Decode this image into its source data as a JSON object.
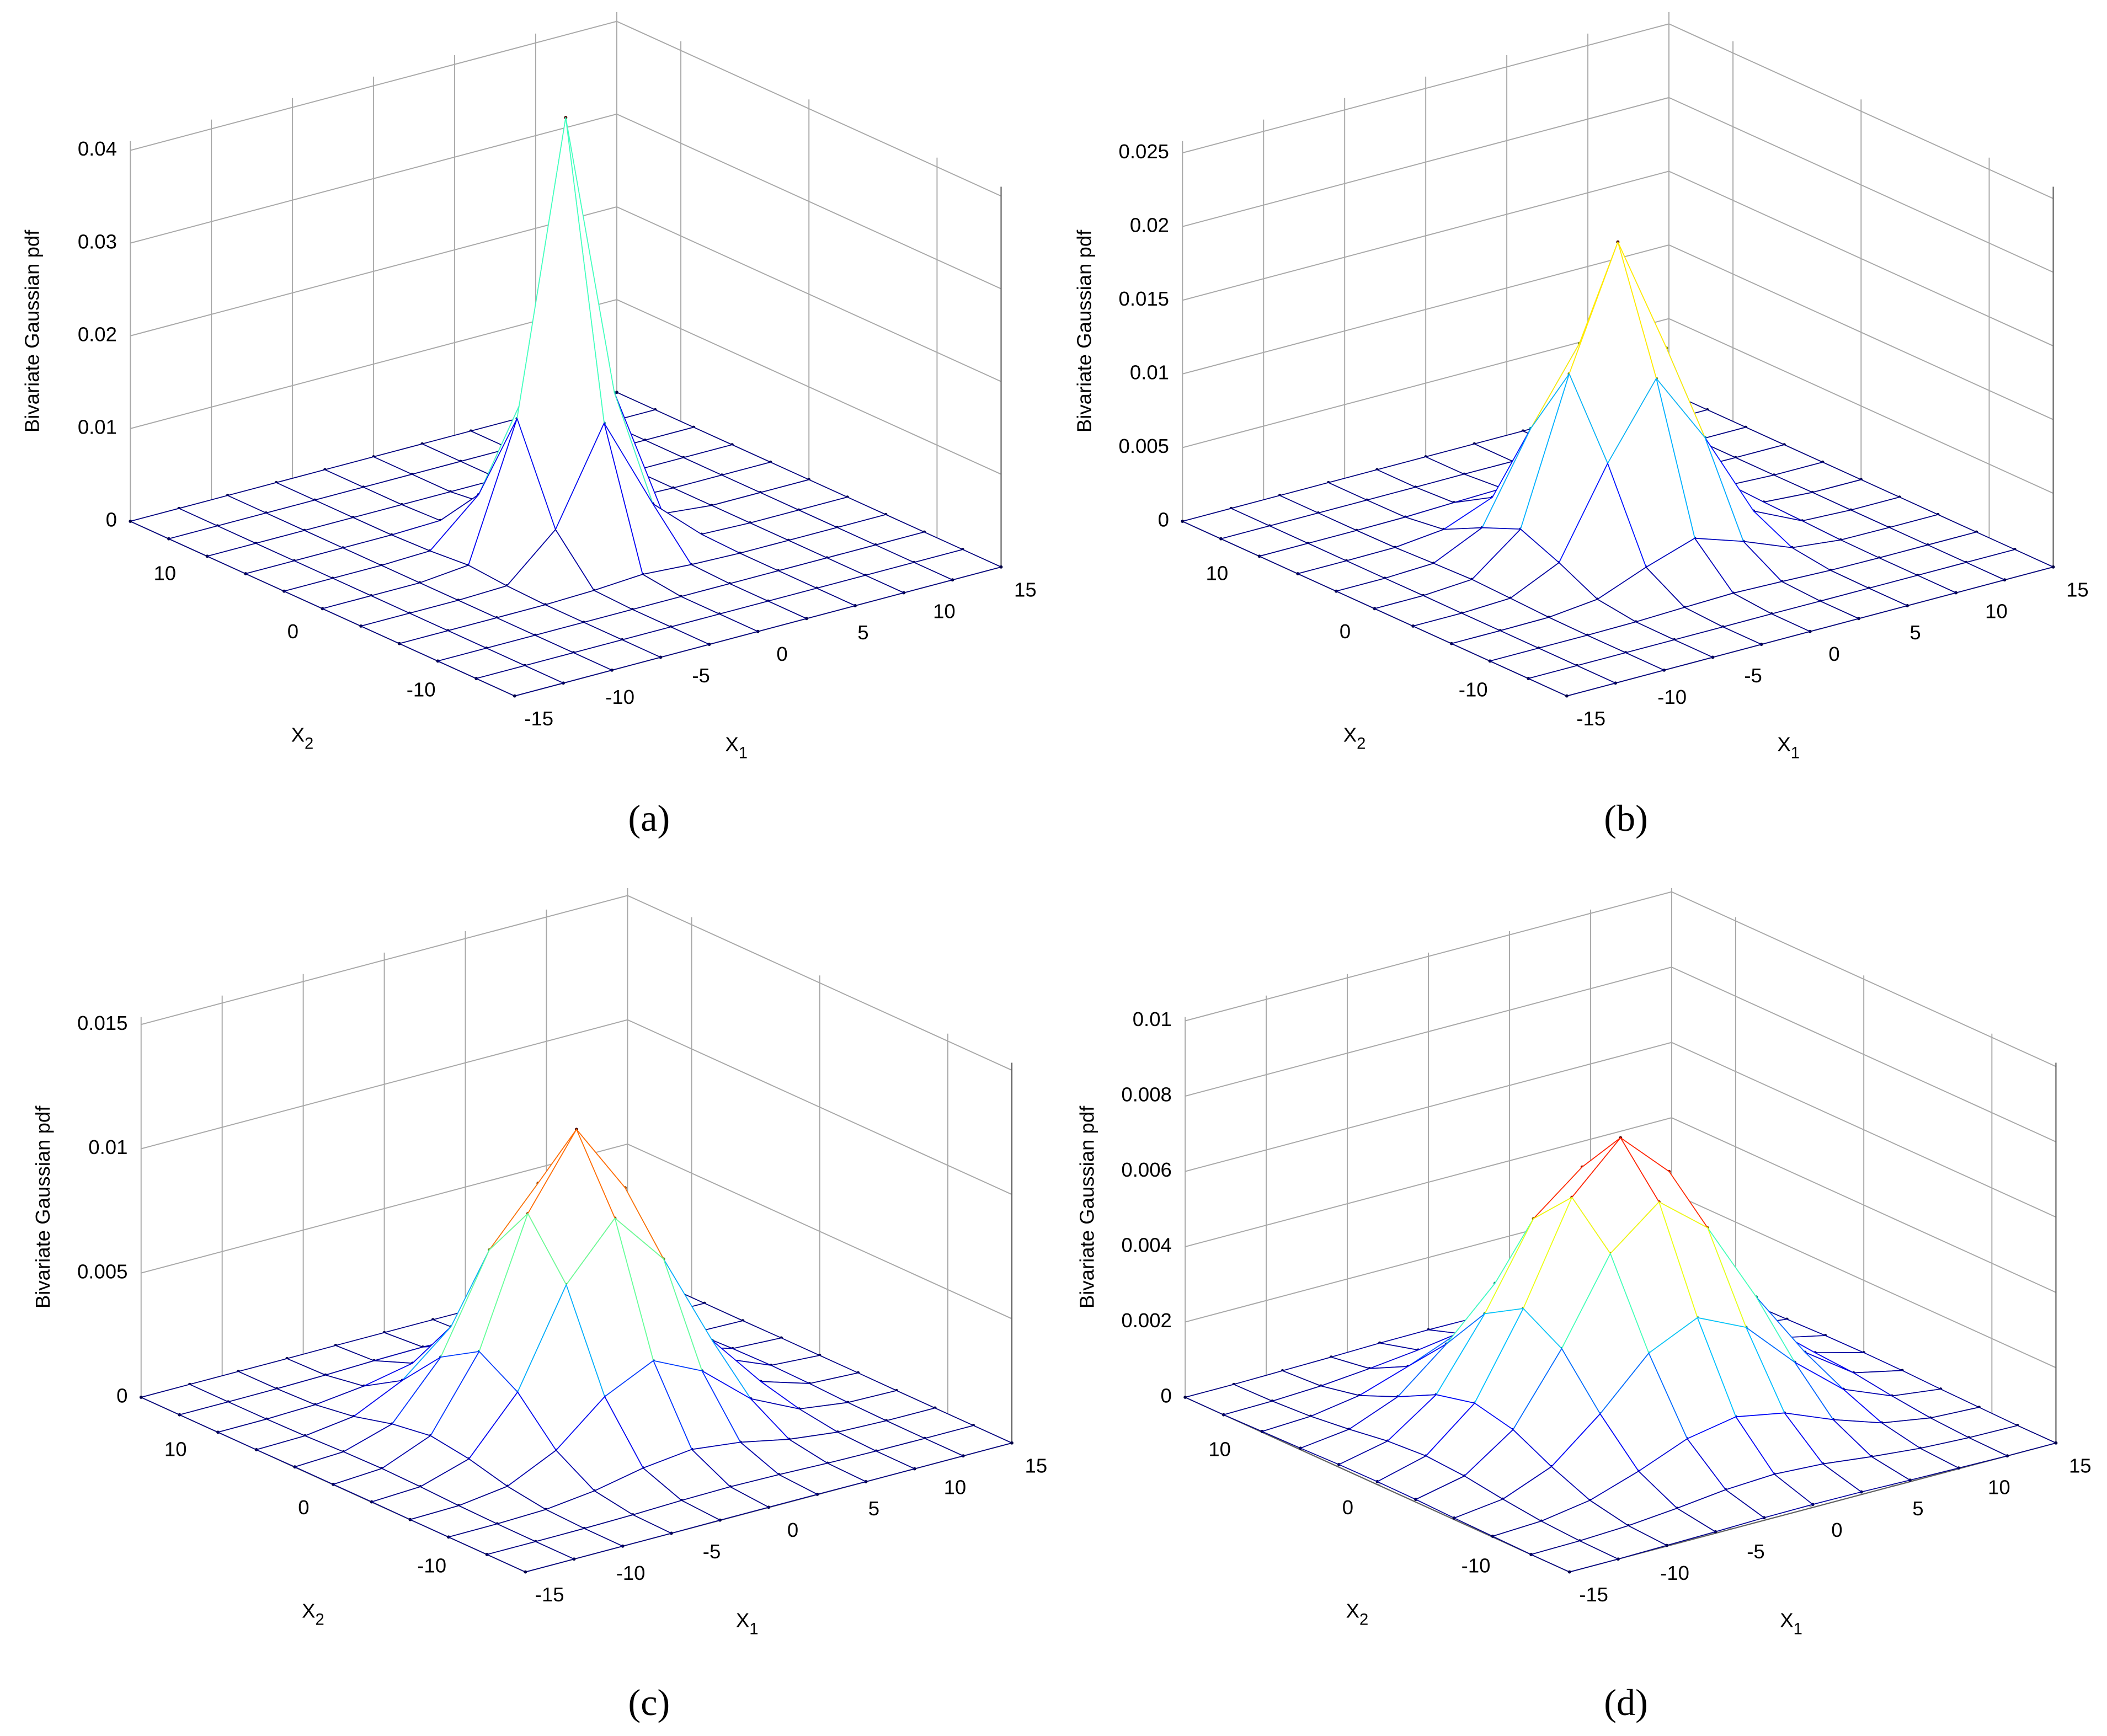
{
  "chart_data": [
    {
      "type": "surface",
      "caption": "(a)",
      "zlabel": "Bivariate Gaussian pdf",
      "xlabel": {
        "text": "X",
        "subscript": "1"
      },
      "ylabel": {
        "text": "X",
        "subscript": "2"
      },
      "x": [
        -15,
        -12,
        -9,
        -6,
        -3,
        0,
        3,
        6,
        9,
        12,
        15
      ],
      "y": [
        -15,
        -12,
        -9,
        -6,
        -3,
        0,
        3,
        6,
        9,
        12,
        15
      ],
      "z": [
        [
          0,
          0,
          0,
          0,
          0,
          0,
          0,
          0,
          0,
          0,
          0
        ],
        [
          0,
          0,
          0,
          0,
          0,
          0,
          0,
          0,
          0,
          0,
          0
        ],
        [
          0,
          0,
          0,
          0,
          0,
          0,
          0,
          0,
          0,
          0,
          0
        ],
        [
          0,
          0,
          0,
          1e-05,
          0.00017,
          0.00051,
          0.00017,
          1e-05,
          0,
          0,
          0
        ],
        [
          0,
          0,
          0,
          0.00017,
          0.00485,
          0.01494,
          0.00485,
          0.00017,
          0,
          0,
          0
        ],
        [
          0,
          0,
          0,
          0.00051,
          0.01494,
          0.046,
          0.01494,
          0.00051,
          0,
          0,
          0
        ],
        [
          0,
          0,
          0,
          0.00017,
          0.00485,
          0.01494,
          0.00485,
          0.00017,
          0,
          0,
          0
        ],
        [
          0,
          0,
          0,
          1e-05,
          0.00017,
          0.00051,
          0.00017,
          1e-05,
          0,
          0,
          0
        ],
        [
          0,
          0,
          0,
          0,
          0,
          0,
          0,
          0,
          0,
          0,
          0
        ],
        [
          0,
          0,
          0,
          0,
          0,
          0,
          0,
          0,
          0,
          0,
          0
        ],
        [
          0,
          0,
          0,
          0,
          0,
          0,
          0,
          0,
          0,
          0,
          0
        ]
      ],
      "xlim": [
        -15,
        15
      ],
      "ylim": [
        -15,
        15
      ],
      "zlim": [
        0,
        0.041
      ],
      "xticks": [
        -15,
        -10,
        -5,
        0,
        5,
        10,
        15
      ],
      "yticks": [
        -10,
        0,
        10
      ],
      "zticks": [
        0,
        0.01,
        0.02,
        0.03,
        0.04
      ],
      "grid": true,
      "colormap": "jet"
    },
    {
      "type": "surface",
      "caption": "(b)",
      "zlabel": "Bivariate Gaussian pdf",
      "xlabel": {
        "text": "X",
        "subscript": "1"
      },
      "ylabel": {
        "text": "X",
        "subscript": "2"
      },
      "x": [
        -15,
        -12,
        -9,
        -6,
        -3,
        0,
        3,
        6,
        9,
        12,
        15
      ],
      "y": [
        -15,
        -12,
        -9,
        -6,
        -3,
        0,
        3,
        6,
        9,
        12,
        15
      ],
      "z": [
        [
          0,
          0,
          0,
          0,
          0,
          0,
          0,
          0,
          0,
          0,
          0
        ],
        [
          0,
          0,
          0,
          0,
          0,
          1e-05,
          0,
          0,
          0,
          0,
          0
        ],
        [
          0,
          0,
          0,
          3e-05,
          0.00014,
          0.00023,
          0.00014,
          3e-05,
          0,
          0,
          0
        ],
        [
          0,
          0,
          3e-05,
          0.00038,
          0.00168,
          0.00277,
          0.00168,
          0.00038,
          3e-05,
          0,
          0
        ],
        [
          0,
          0,
          0.00014,
          0.00168,
          0.00754,
          0.01243,
          0.00754,
          0.00168,
          0.00014,
          0,
          0
        ],
        [
          0,
          1e-05,
          0.00023,
          0.00277,
          0.01243,
          0.0205,
          0.01243,
          0.00277,
          0.00023,
          1e-05,
          0
        ],
        [
          0,
          0,
          0.00014,
          0.00168,
          0.00754,
          0.01243,
          0.00754,
          0.00168,
          0.00014,
          0,
          0
        ],
        [
          0,
          0,
          3e-05,
          0.00038,
          0.00168,
          0.00277,
          0.00168,
          0.00038,
          3e-05,
          0,
          0
        ],
        [
          0,
          0,
          0,
          3e-05,
          0.00014,
          0.00023,
          0.00014,
          3e-05,
          0,
          0,
          0
        ],
        [
          0,
          0,
          0,
          0,
          0,
          1e-05,
          0,
          0,
          0,
          0,
          0
        ],
        [
          0,
          0,
          0,
          0,
          0,
          0,
          0,
          0,
          0,
          0,
          0
        ]
      ],
      "xlim": [
        -15,
        15
      ],
      "ylim": [
        -15,
        15
      ],
      "zlim": [
        0,
        0.0258
      ],
      "xticks": [
        -15,
        -10,
        -5,
        0,
        5,
        10,
        15
      ],
      "yticks": [
        -10,
        0,
        10
      ],
      "zticks": [
        0,
        0.005,
        0.01,
        0.015,
        0.02,
        0.025
      ],
      "grid": true,
      "colormap": "jet"
    },
    {
      "type": "surface",
      "caption": "(c)",
      "zlabel": "Bivariate Gaussian pdf",
      "xlabel": {
        "text": "X",
        "subscript": "1"
      },
      "ylabel": {
        "text": "X",
        "subscript": "2"
      },
      "x": [
        -15,
        -12,
        -9,
        -6,
        -3,
        0,
        3,
        6,
        9,
        12,
        15
      ],
      "y": [
        -15,
        -12,
        -9,
        -6,
        -3,
        0,
        3,
        6,
        9,
        12,
        15
      ],
      "z": [
        [
          0,
          0,
          0,
          0,
          1e-05,
          1e-05,
          1e-05,
          0,
          0,
          0,
          0
        ],
        [
          0,
          0,
          1e-05,
          4e-05,
          0.0001,
          0.00013,
          0.0001,
          4e-05,
          1e-05,
          0,
          0
        ],
        [
          0,
          1e-05,
          7e-05,
          0.0003,
          0.0007,
          0.00093,
          0.0007,
          0.0003,
          7e-05,
          1e-05,
          0
        ],
        [
          0,
          4e-05,
          0.0003,
          0.00123,
          0.00287,
          0.0038,
          0.00287,
          0.00123,
          0.0003,
          4e-05,
          0
        ],
        [
          1e-05,
          0.0001,
          0.0007,
          0.00287,
          0.00667,
          0.00883,
          0.00667,
          0.00287,
          0.0007,
          0.0001,
          1e-05
        ],
        [
          1e-05,
          0.00013,
          0.00093,
          0.0038,
          0.00883,
          0.0117,
          0.00883,
          0.0038,
          0.00093,
          0.00013,
          1e-05
        ],
        [
          1e-05,
          0.0001,
          0.0007,
          0.00287,
          0.00667,
          0.00883,
          0.00667,
          0.00287,
          0.0007,
          0.0001,
          1e-05
        ],
        [
          0,
          4e-05,
          0.0003,
          0.00123,
          0.00287,
          0.0038,
          0.00287,
          0.00123,
          0.0003,
          4e-05,
          0
        ],
        [
          0,
          1e-05,
          7e-05,
          0.0003,
          0.0007,
          0.00093,
          0.0007,
          0.0003,
          7e-05,
          1e-05,
          0
        ],
        [
          0,
          0,
          1e-05,
          4e-05,
          0.0001,
          0.00013,
          0.0001,
          4e-05,
          1e-05,
          0,
          0
        ],
        [
          0,
          0,
          0,
          0,
          1e-05,
          1e-05,
          1e-05,
          0,
          0,
          0,
          0
        ]
      ],
      "xlim": [
        -15,
        15
      ],
      "ylim": [
        -15,
        15
      ],
      "zlim": [
        0,
        0.0153
      ],
      "xticks": [
        -15,
        -10,
        -5,
        0,
        5,
        10,
        15
      ],
      "yticks": [
        -10,
        0,
        10
      ],
      "zticks": [
        0,
        0.005,
        0.01,
        0.015
      ],
      "grid": true,
      "colormap": "jet"
    },
    {
      "type": "surface",
      "caption": "(d)",
      "zlabel": "Bivariate Gaussian pdf",
      "xlabel": {
        "text": "X",
        "subscript": "1"
      },
      "ylabel": {
        "text": "X",
        "subscript": "2"
      },
      "x": [
        -15,
        -12,
        -9,
        -6,
        -3,
        0,
        3,
        6,
        9,
        12,
        15
      ],
      "y": [
        -15,
        -12,
        -9,
        -6,
        -3,
        0,
        3,
        6,
        9,
        12,
        15
      ],
      "z": [
        [
          0,
          0,
          2e-05,
          4e-05,
          7e-05,
          8e-05,
          7e-05,
          4e-05,
          2e-05,
          0,
          0
        ],
        [
          0,
          2e-05,
          8e-05,
          0.0002,
          0.00035,
          0.00042,
          0.00035,
          0.0002,
          8e-05,
          2e-05,
          0
        ],
        [
          2e-05,
          8e-05,
          0.00029,
          0.00072,
          0.00124,
          0.00148,
          0.00124,
          0.00072,
          0.00029,
          8e-05,
          2e-05
        ],
        [
          4e-05,
          0.0002,
          0.00072,
          0.00178,
          0.00305,
          0.00365,
          0.00305,
          0.00178,
          0.00072,
          0.0002,
          4e-05
        ],
        [
          7e-05,
          0.00035,
          0.00124,
          0.00305,
          0.00523,
          0.00626,
          0.00523,
          0.00305,
          0.00124,
          0.00035,
          7e-05
        ],
        [
          8e-05,
          0.00042,
          0.00148,
          0.00365,
          0.00626,
          0.0075,
          0.00626,
          0.00365,
          0.00148,
          0.00042,
          8e-05
        ],
        [
          7e-05,
          0.00035,
          0.00124,
          0.00305,
          0.00523,
          0.00626,
          0.00523,
          0.00305,
          0.00124,
          0.00035,
          7e-05
        ],
        [
          4e-05,
          0.0002,
          0.00072,
          0.00178,
          0.00305,
          0.00365,
          0.00305,
          0.00178,
          0.00072,
          0.0002,
          4e-05
        ],
        [
          2e-05,
          8e-05,
          0.00029,
          0.00072,
          0.00124,
          0.00148,
          0.00124,
          0.00072,
          0.00029,
          8e-05,
          2e-05
        ],
        [
          0,
          2e-05,
          8e-05,
          0.0002,
          0.00035,
          0.00042,
          0.00035,
          0.0002,
          8e-05,
          2e-05,
          0
        ],
        [
          0,
          0,
          2e-05,
          4e-05,
          7e-05,
          8e-05,
          7e-05,
          4e-05,
          2e-05,
          0,
          0
        ]
      ],
      "xlim": [
        -15,
        15
      ],
      "ylim": [
        -15,
        15
      ],
      "zlim": [
        0,
        0.0101
      ],
      "xticks": [
        -15,
        -10,
        -5,
        0,
        5,
        10,
        15
      ],
      "yticks": [
        -10,
        0,
        10
      ],
      "zticks": [
        0,
        0.002,
        0.004,
        0.006,
        0.008,
        0.01
      ],
      "grid": true,
      "colormap": "jet"
    }
  ]
}
